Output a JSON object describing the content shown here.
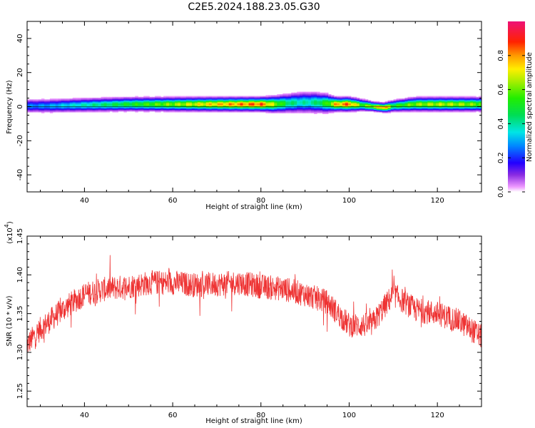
{
  "title": "C2E5.2024.188.23.05.G30",
  "chart_data": [
    {
      "type": "heatmap",
      "xlabel": "Height of straight line (km)",
      "ylabel": "Frequency (Hz)",
      "xlim": [
        27,
        130
      ],
      "ylim": [
        -50,
        50
      ],
      "xticks": [
        40,
        60,
        80,
        100,
        120
      ],
      "yticks": [
        -40,
        -20,
        0,
        20,
        40
      ],
      "colorbar": {
        "label": "Normalized spectral amplitude",
        "range": [
          0,
          1
        ],
        "ticks": [
          "0.0",
          "0.2",
          "0.4",
          "0.6",
          "0.8"
        ]
      },
      "ridge_profile": {
        "x": [
          27,
          32,
          40,
          50,
          60,
          68,
          75,
          80,
          83,
          86,
          89,
          92,
          95,
          97,
          100,
          103,
          106,
          108,
          110,
          115,
          120,
          125,
          130
        ],
        "center_hz": [
          0.5,
          0.5,
          1,
          1.5,
          1.5,
          1.5,
          1.5,
          1.5,
          1.5,
          2,
          2.5,
          2.5,
          2,
          1.5,
          1.5,
          1,
          0,
          -0.5,
          0.5,
          1.5,
          1.5,
          1.5,
          1.5
        ],
        "halfwidth_hz": [
          3,
          3,
          3,
          3,
          3,
          3,
          3,
          3,
          3.5,
          4,
          4.5,
          4.5,
          4,
          3,
          3,
          2.5,
          2,
          2,
          2.5,
          3,
          3,
          3,
          3
        ],
        "peak_amplitude": [
          0.28,
          0.32,
          0.42,
          0.55,
          0.68,
          0.8,
          0.88,
          0.93,
          0.7,
          0.5,
          0.42,
          0.45,
          0.6,
          0.85,
          0.92,
          0.6,
          0.75,
          0.95,
          0.55,
          0.68,
          0.72,
          0.7,
          0.65
        ]
      }
    },
    {
      "type": "line",
      "xlabel": "Height of straight line (km)",
      "ylabel": "SNR (10 * v/v)",
      "y_multiplier": "(x10",
      "y_multiplier_exp": "4",
      "y_multiplier_close": ")",
      "xlim": [
        27,
        130
      ],
      "ylim": [
        1.23,
        1.45
      ],
      "xticks": [
        40,
        60,
        80,
        100,
        120
      ],
      "yticks": [
        "1.25",
        "1.30",
        "1.35",
        "1.40",
        "1.45"
      ],
      "series": [
        {
          "color": "#ee3333",
          "trend": {
            "x": [
              27,
              30,
              35,
              40,
              45,
              50,
              55,
              60,
              65,
              70,
              75,
              80,
              85,
              90,
              95,
              100,
              105,
              110,
              115,
              120,
              125,
              130
            ],
            "y": [
              1.31,
              1.33,
              1.355,
              1.375,
              1.382,
              1.385,
              1.39,
              1.39,
              1.387,
              1.388,
              1.39,
              1.385,
              1.382,
              1.375,
              1.365,
              1.335,
              1.335,
              1.375,
              1.355,
              1.35,
              1.34,
              1.32
            ]
          },
          "noise_amplitude": 0.016,
          "samples": 1600
        }
      ]
    }
  ]
}
